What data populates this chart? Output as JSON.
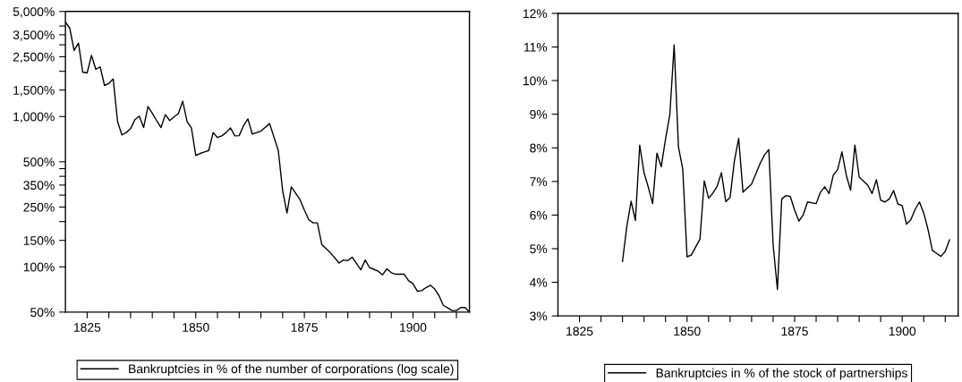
{
  "chart_data": [
    {
      "type": "line",
      "log": "y",
      "grid": false,
      "legend": "bottom",
      "marker": "none",
      "line_style": "solid",
      "xlim": [
        1820,
        1913
      ],
      "ylim": [
        50,
        5000
      ],
      "xticks": [
        1825,
        {
          "value": 1830,
          "label": null
        },
        {
          "value": 1835,
          "label": null
        },
        {
          "value": 1840,
          "label": null
        },
        {
          "value": 1845,
          "label": null
        },
        1850,
        {
          "value": 1855,
          "label": null
        },
        {
          "value": 1860,
          "label": null
        },
        {
          "value": 1865,
          "label": null
        },
        {
          "value": 1870,
          "label": null
        },
        1875,
        {
          "value": 1880,
          "label": null
        },
        {
          "value": 1885,
          "label": null
        },
        {
          "value": 1890,
          "label": null
        },
        {
          "value": 1895,
          "label": null
        },
        1900,
        {
          "value": 1905,
          "label": null
        },
        {
          "value": 1910,
          "label": null
        }
      ],
      "yticks": [
        {
          "value": 50,
          "label": "50%"
        },
        {
          "value": 100,
          "label": "100%"
        },
        {
          "value": 150,
          "label": "150%"
        },
        {
          "value": 200,
          "label": null
        },
        {
          "value": 250,
          "label": "250%"
        },
        {
          "value": 300,
          "label": null
        },
        {
          "value": 350,
          "label": "350%"
        },
        {
          "value": 400,
          "label": null
        },
        {
          "value": 450,
          "label": null
        },
        {
          "value": 500,
          "label": "500%"
        },
        {
          "value": 1000,
          "label": "1,000%"
        },
        {
          "value": 1500,
          "label": "1,500%"
        },
        {
          "value": 2000,
          "label": null
        },
        {
          "value": 2500,
          "label": "2,500%"
        },
        {
          "value": 3000,
          "label": null
        },
        {
          "value": 3500,
          "label": "3,500%"
        },
        {
          "value": 4000,
          "label": null
        },
        {
          "value": 5000,
          "label": "5,000%"
        }
      ],
      "series": [
        {
          "name": "Bankruptcies in % of the number of corporations (log scale)",
          "color": "#000000",
          "x": [
            1820,
            1821,
            1822,
            1823,
            1824,
            1825,
            1826,
            1827,
            1828,
            1829,
            1830,
            1831,
            1832,
            1833,
            1834,
            1835,
            1836,
            1837,
            1838,
            1839,
            1840,
            1841,
            1842,
            1843,
            1844,
            1845,
            1846,
            1847,
            1848,
            1849,
            1850,
            1851,
            1852,
            1853,
            1854,
            1855,
            1856,
            1857,
            1858,
            1859,
            1860,
            1861,
            1862,
            1863,
            1865,
            1867,
            1869,
            1870,
            1871,
            1872,
            1874,
            1875,
            1876,
            1877,
            1878,
            1879,
            1881,
            1883,
            1884,
            1885,
            1886,
            1888,
            1889,
            1890,
            1892,
            1893,
            1894,
            1895,
            1896,
            1898,
            1899,
            1900,
            1901,
            1902,
            1903,
            1904,
            1905,
            1906,
            1907,
            1908,
            1909,
            1910,
            1911,
            1912,
            1913
          ],
          "values": [
            4250,
            3870,
            2750,
            3080,
            1970,
            1950,
            2550,
            2060,
            2140,
            1610,
            1660,
            1780,
            927,
            755,
            783,
            830,
            953,
            1006,
            845,
            1165,
            1052,
            940,
            845,
            1030,
            940,
            994,
            1045,
            1265,
            927,
            840,
            551,
            568,
            581,
            594,
            783,
            725,
            744,
            783,
            840,
            744,
            746,
            870,
            964,
            765,
            800,
            898,
            594,
            321,
            228,
            340,
            280,
            239,
            206,
            196,
            196,
            141,
            124,
            106,
            111,
            110,
            116,
            95.5,
            111,
            99,
            93.5,
            88.5,
            97,
            91.4,
            89.3,
            89.3,
            80.7,
            77.2,
            68.9,
            69.5,
            72.7,
            75.5,
            71.2,
            64.3,
            55.3,
            53.4,
            51.2,
            51.2,
            53.6,
            53.6,
            50
          ]
        }
      ]
    },
    {
      "type": "line",
      "grid": false,
      "legend": "bottom",
      "marker": "none",
      "line_style": "solid",
      "xlim": [
        1820,
        1913
      ],
      "ylim": [
        3,
        12
      ],
      "xticks": [
        1825,
        {
          "value": 1830,
          "label": null
        },
        {
          "value": 1835,
          "label": null
        },
        {
          "value": 1840,
          "label": null
        },
        {
          "value": 1845,
          "label": null
        },
        1850,
        {
          "value": 1855,
          "label": null
        },
        {
          "value": 1860,
          "label": null
        },
        {
          "value": 1865,
          "label": null
        },
        {
          "value": 1870,
          "label": null
        },
        1875,
        {
          "value": 1880,
          "label": null
        },
        {
          "value": 1885,
          "label": null
        },
        {
          "value": 1890,
          "label": null
        },
        {
          "value": 1895,
          "label": null
        },
        1900,
        {
          "value": 1905,
          "label": null
        },
        {
          "value": 1910,
          "label": null
        }
      ],
      "yticks": [
        {
          "value": 3,
          "label": "3%"
        },
        {
          "value": 4,
          "label": "4%"
        },
        {
          "value": 5,
          "label": "5%"
        },
        {
          "value": 6,
          "label": "6%"
        },
        {
          "value": 7,
          "label": "7%"
        },
        {
          "value": 8,
          "label": "8%"
        },
        {
          "value": 9,
          "label": "9%"
        },
        {
          "value": 10,
          "label": "10%"
        },
        {
          "value": 11,
          "label": "11%"
        },
        {
          "value": 12,
          "label": "12%"
        }
      ],
      "series": [
        {
          "name": "Bankruptcies in % of the stock of partnerships",
          "color": "#000000",
          "x": [
            1835,
            1836,
            1837,
            1838,
            1839,
            1840,
            1841,
            1842,
            1843,
            1844,
            1845,
            1846,
            1847,
            1848,
            1849,
            1850,
            1851,
            1852,
            1853,
            1854,
            1855,
            1856,
            1857,
            1858,
            1859,
            1860,
            1861,
            1862,
            1863,
            1865,
            1867,
            1868,
            1869,
            1870,
            1871,
            1872,
            1873,
            1874,
            1875,
            1876,
            1877,
            1878,
            1880,
            1881,
            1882,
            1883,
            1884,
            1885,
            1886,
            1887,
            1888,
            1889,
            1890,
            1891,
            1892,
            1893,
            1894,
            1895,
            1896,
            1897,
            1898,
            1899,
            1900,
            1901,
            1902,
            1903,
            1904,
            1905,
            1906,
            1907,
            1908,
            1909,
            1910,
            1911
          ],
          "values": [
            4.62,
            5.66,
            6.41,
            5.84,
            8.08,
            7.26,
            6.83,
            6.34,
            7.84,
            7.44,
            8.26,
            8.99,
            11.06,
            8.03,
            7.37,
            4.76,
            4.81,
            5.05,
            5.28,
            7.02,
            6.5,
            6.65,
            6.86,
            7.26,
            6.4,
            6.52,
            7.61,
            8.28,
            6.68,
            6.92,
            7.54,
            7.79,
            7.95,
            5.12,
            3.79,
            6.48,
            6.58,
            6.55,
            6.15,
            5.82,
            6.01,
            6.39,
            6.34,
            6.68,
            6.84,
            6.64,
            7.19,
            7.35,
            7.88,
            7.19,
            6.74,
            8.08,
            7.13,
            7.01,
            6.89,
            6.64,
            7.05,
            6.44,
            6.39,
            6.48,
            6.73,
            6.33,
            6.28,
            5.73,
            5.86,
            6.17,
            6.39,
            6.06,
            5.57,
            4.95,
            4.86,
            4.77,
            4.92,
            5.26
          ]
        }
      ]
    }
  ]
}
